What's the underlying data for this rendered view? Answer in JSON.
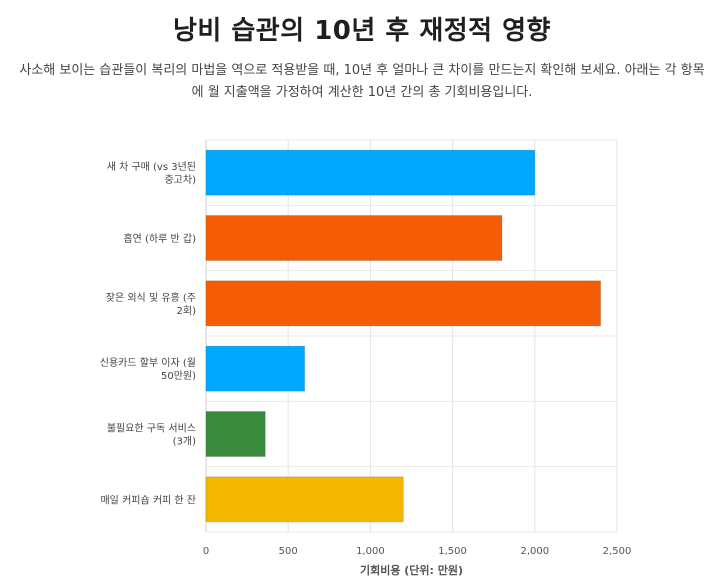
{
  "header": {
    "title": "낭비 습관의 10년 후 재정적 영향",
    "subtitle": "사소해 보이는 습관들이 복리의 마법을 역으로 적용받을 때, 10년 후 얼마나 큰 차이를 만드는지 확인해 보세요. 아래는 각 항목에 월 지출액을 가정하여 계산한 10년 간의 총 기회비용입니다."
  },
  "chart_data": {
    "type": "bar",
    "orientation": "horizontal",
    "categories": [
      [
        "새 차 구매 (vs 3년된",
        "중고차)"
      ],
      [
        "흡연 (하루 반 갑)"
      ],
      [
        "잦은 외식 및 유흥 (주",
        "2회)"
      ],
      [
        "신용카드 할부 이자 (월",
        "50만원)"
      ],
      [
        "불필요한 구독 서비스",
        "(3개)"
      ],
      [
        "매일 커피숍 커피 한 잔"
      ]
    ],
    "values": [
      2000,
      1800,
      2400,
      600,
      360,
      1200
    ],
    "colors": [
      "#00a8ff",
      "#f45c05",
      "#f45c05",
      "#00a8ff",
      "#3a8a3c",
      "#f5b800"
    ],
    "xlabel": "기회비용 (단위: 만원)",
    "xlim": [
      0,
      2500
    ],
    "ticks": [
      0,
      500,
      1000,
      1500,
      2000,
      2500
    ],
    "tick_labels": [
      "0",
      "500",
      "1,000",
      "1,500",
      "2,000",
      "2,500"
    ],
    "grid": true
  }
}
